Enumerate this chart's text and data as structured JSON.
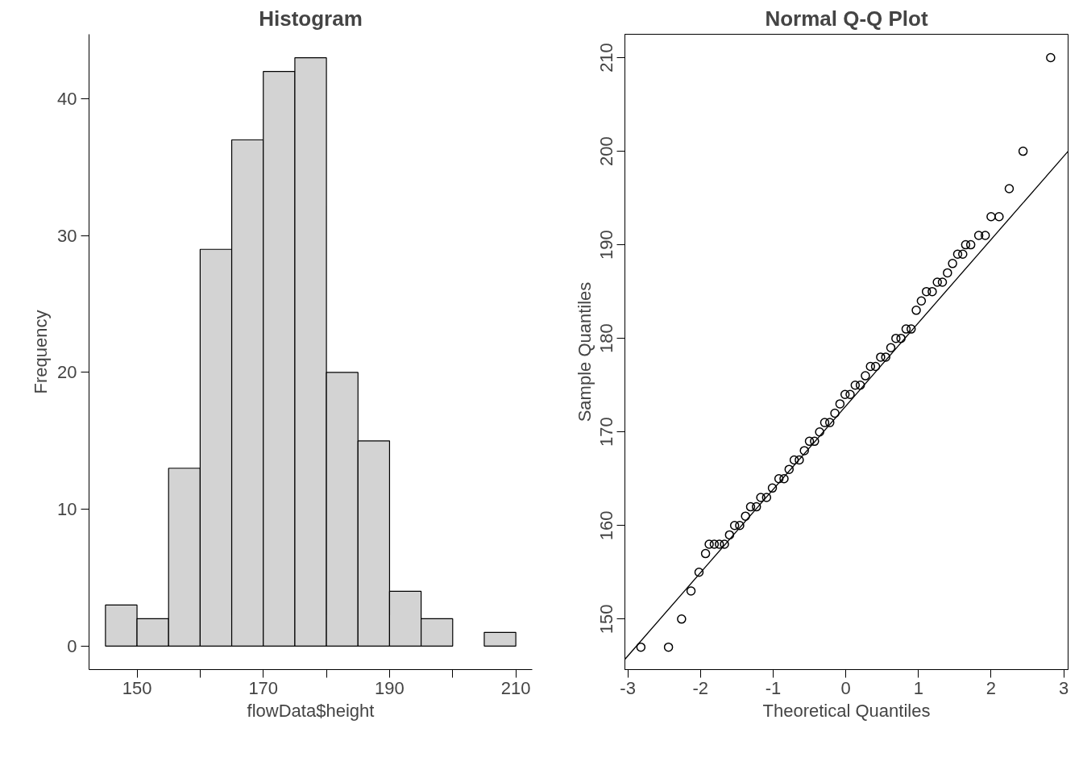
{
  "chart_data": [
    {
      "type": "histogram",
      "title": "Histogram",
      "xlabel": "flowData$height",
      "ylabel": "Frequency",
      "color": "#d3d3d3",
      "grid": false,
      "bins": [
        145,
        150,
        155,
        160,
        165,
        170,
        175,
        180,
        185,
        190,
        195,
        200,
        205,
        210
      ],
      "values": [
        3,
        2,
        13,
        29,
        37,
        42,
        43,
        20,
        15,
        4,
        2,
        0,
        1
      ],
      "xlim": [
        142.4,
        212.6
      ],
      "ylim": [
        -1.72,
        44.72
      ],
      "xticks": [
        150,
        {
          "value": 160,
          "label": null
        },
        170,
        {
          "value": 180,
          "label": null
        },
        190,
        {
          "value": 200,
          "label": null
        },
        210
      ],
      "yticks": [
        0,
        10,
        20,
        30,
        40
      ]
    },
    {
      "type": "scatter",
      "title": "Normal Q-Q Plot",
      "xlabel": "Theoretical Quantiles",
      "ylabel": "Sample Quantiles",
      "grid": false,
      "marker": "circle",
      "xlim": [
        -3.04,
        3.06
      ],
      "ylim": [
        144.6,
        212.5
      ],
      "xticks": [
        -3,
        -2,
        -1,
        0,
        1,
        2,
        3
      ],
      "yticks": [
        150,
        160,
        170,
        180,
        190,
        200,
        210
      ],
      "series": [
        {
          "type": "scatter",
          "color": "#000000",
          "x": [
            -2.82,
            -2.44,
            -2.26,
            -2.13,
            -2.02,
            -1.93,
            -1.88,
            -1.81,
            -1.74,
            -1.67,
            -1.6,
            -1.53,
            -1.46,
            -1.38,
            -1.31,
            -1.23,
            -1.17,
            -1.09,
            -1.01,
            -0.92,
            -0.85,
            -0.78,
            -0.71,
            -0.64,
            -0.57,
            -0.5,
            -0.43,
            -0.36,
            -0.29,
            -0.22,
            -0.15,
            -0.08,
            -0.01,
            0.06,
            0.13,
            0.2,
            0.27,
            0.34,
            0.41,
            0.48,
            0.55,
            0.62,
            0.69,
            0.76,
            0.83,
            0.9,
            0.97,
            1.04,
            1.11,
            1.19,
            1.26,
            1.33,
            1.4,
            1.47,
            1.54,
            1.61,
            1.65,
            1.72,
            1.83,
            1.92,
            2.0,
            2.11,
            2.25,
            2.44,
            2.82
          ],
          "values": [
            147,
            147,
            150,
            153,
            155,
            157,
            158,
            158,
            158,
            158,
            159,
            160,
            160,
            161,
            162,
            162,
            163,
            163,
            164,
            165,
            165,
            166,
            167,
            167,
            168,
            169,
            169,
            170,
            171,
            171,
            172,
            173,
            174,
            174,
            175,
            175,
            176,
            177,
            177,
            178,
            178,
            179,
            180,
            180,
            181,
            181,
            183,
            184,
            185,
            185,
            186,
            186,
            187,
            188,
            189,
            189,
            190,
            190,
            191,
            191,
            193,
            193,
            196,
            200,
            210
          ]
        },
        {
          "type": "line",
          "color": "#000000",
          "marker": "none",
          "x": [
            -3.04,
            3.06
          ],
          "values": [
            145.7,
            200
          ]
        }
      ]
    }
  ]
}
